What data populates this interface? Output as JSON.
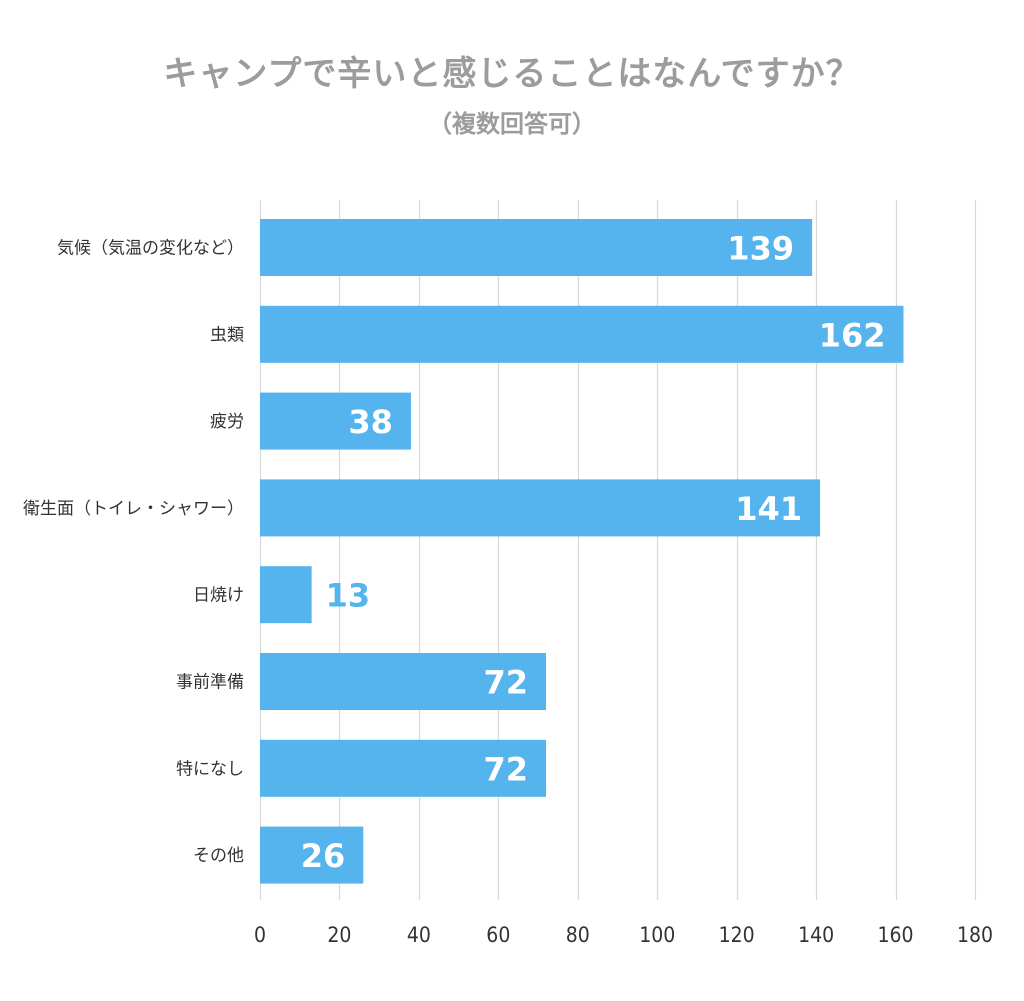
{
  "colors": {
    "bar": "#55b4ee",
    "grid": "#d9d9d9",
    "label_inside": "#ffffff",
    "label_outside": "#55b4ee",
    "title": "#9c9c9c"
  },
  "chart_data": {
    "type": "bar",
    "orientation": "horizontal",
    "title": "キャンプで辛いと感じることはなんですか？",
    "subtitle": "（複数回答可）",
    "xlabel": "",
    "ylabel": "",
    "categories": [
      "気候（気温の変化など）",
      "虫類",
      "疲労",
      "衛生面（トイレ・シャワー）",
      "日焼け",
      "事前準備",
      "特になし",
      "その他"
    ],
    "values": [
      139,
      162,
      38,
      141,
      13,
      72,
      72,
      26
    ],
    "xlim": [
      0,
      180
    ],
    "xticks": [
      0,
      20,
      40,
      60,
      80,
      100,
      120,
      140,
      160,
      180
    ],
    "xtick_labels": [
      "0",
      "20",
      "40",
      "60",
      "80",
      "100",
      "120",
      "140",
      "160",
      "180"
    ],
    "grid": true,
    "legend": "none",
    "data_labels": true
  }
}
